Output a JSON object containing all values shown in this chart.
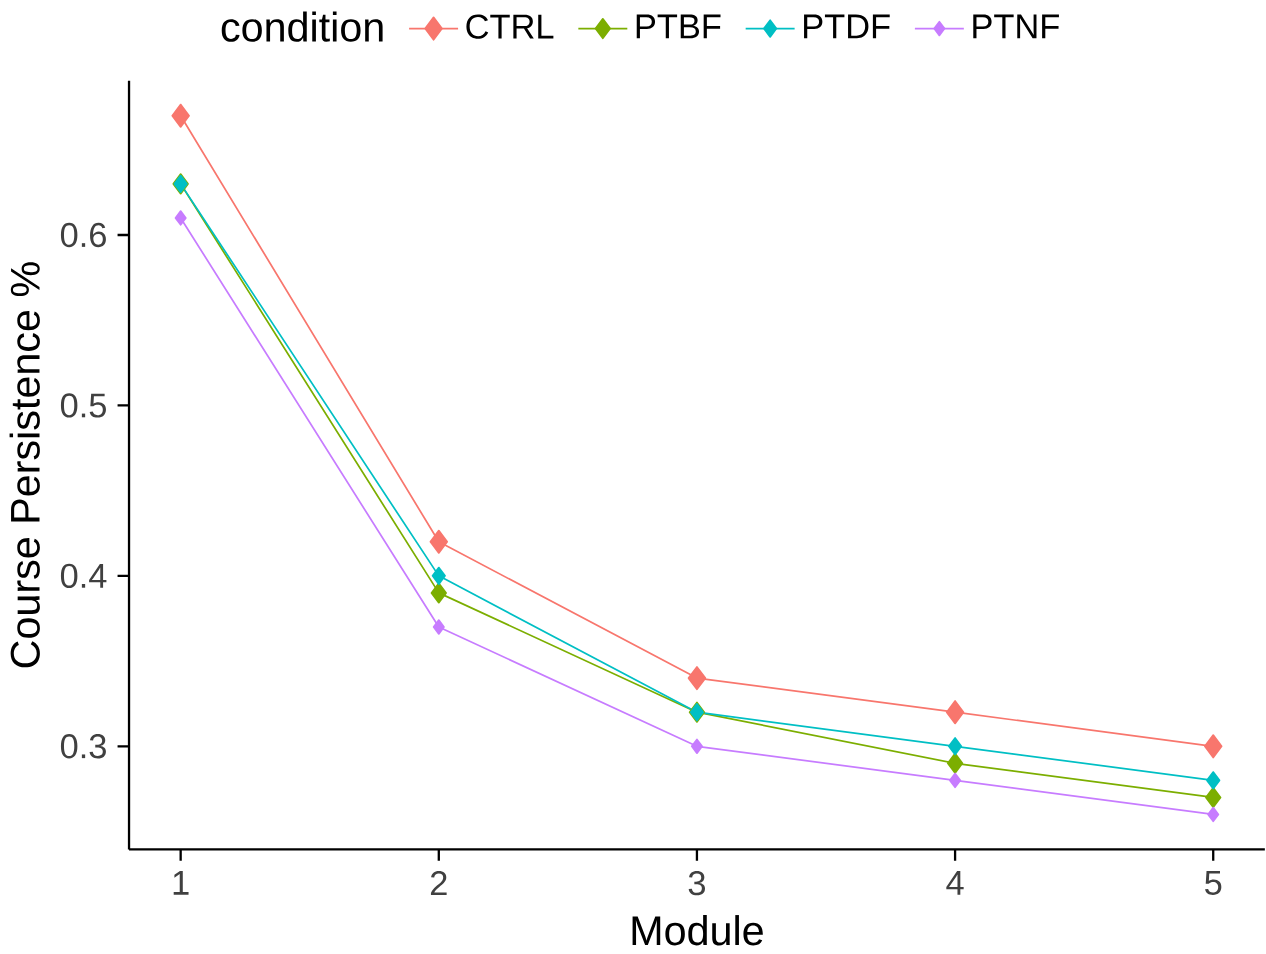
{
  "chart_data": {
    "type": "line",
    "xlabel": "Module",
    "ylabel": "Course Persistence %",
    "legend_title": "condition",
    "x": [
      1,
      2,
      3,
      4,
      5
    ],
    "series": [
      {
        "name": "CTRL",
        "color": "#f8766d",
        "values": [
          0.67,
          0.42,
          0.34,
          0.32,
          0.3
        ]
      },
      {
        "name": "PTBF",
        "color": "#7cae00",
        "values": [
          0.63,
          0.39,
          0.32,
          0.29,
          0.27
        ]
      },
      {
        "name": "PTDF",
        "color": "#00bfc4",
        "values": [
          0.63,
          0.4,
          0.32,
          0.3,
          0.28
        ]
      },
      {
        "name": "PTNF",
        "color": "#c77cff",
        "values": [
          0.61,
          0.37,
          0.3,
          0.28,
          0.26
        ]
      }
    ],
    "xlim": [
      0.8,
      5.2
    ],
    "ylim": [
      0.2395,
      0.6905
    ],
    "xticks": [
      1,
      2,
      3,
      4,
      5
    ],
    "yticks": [
      0.3,
      0.4,
      0.5,
      0.6
    ],
    "grid": false,
    "legend": "top",
    "marker": "diamond",
    "line_style": "solid"
  }
}
